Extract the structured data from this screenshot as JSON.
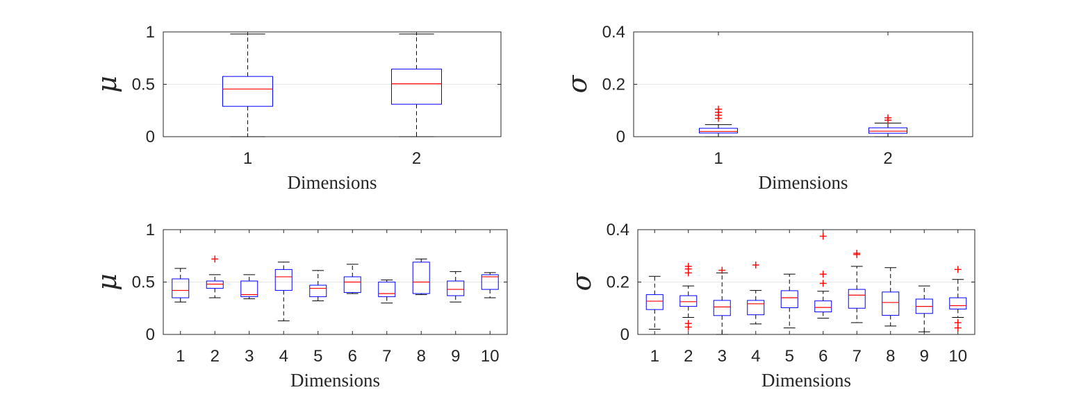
{
  "colors": {
    "box": "#0000ff",
    "median": "#ff0000",
    "whisker": "#000000",
    "outlier": "#ff0000",
    "axis": "#262626",
    "grid": "#e6e6e6"
  },
  "chart_data": [
    {
      "type": "boxplot",
      "xlabel": "Dimensions",
      "ylabel": "μ",
      "ylim": [
        0,
        1
      ],
      "yticks": [
        "0",
        "0.5",
        "1"
      ],
      "grid": "y",
      "categories": [
        "1",
        "2"
      ],
      "boxes": [
        {
          "min": 0.0,
          "q1": 0.29,
          "median": 0.455,
          "q3": 0.575,
          "max": 0.98,
          "outliers": []
        },
        {
          "min": 0.0,
          "q1": 0.31,
          "median": 0.505,
          "q3": 0.645,
          "max": 0.98,
          "outliers": []
        }
      ]
    },
    {
      "type": "boxplot",
      "xlabel": "Dimensions",
      "ylabel": "σ",
      "ylim": [
        0,
        0.4
      ],
      "yticks": [
        "0",
        "0.2",
        "0.4"
      ],
      "grid": "y",
      "categories": [
        "1",
        "2"
      ],
      "boxes": [
        {
          "min": 0.0,
          "q1": 0.014,
          "median": 0.02,
          "q3": 0.032,
          "max": 0.046,
          "outliers": [
            0.07,
            0.082,
            0.093,
            0.105
          ]
        },
        {
          "min": 0.0,
          "q1": 0.013,
          "median": 0.021,
          "q3": 0.034,
          "max": 0.052,
          "outliers": [
            0.063,
            0.072
          ]
        }
      ]
    },
    {
      "type": "boxplot",
      "xlabel": "Dimensions",
      "ylabel": "μ",
      "ylim": [
        0,
        1
      ],
      "yticks": [
        "0",
        "0.5",
        "1"
      ],
      "grid": "y",
      "categories": [
        "1",
        "2",
        "3",
        "4",
        "5",
        "6",
        "7",
        "8",
        "9",
        "10"
      ],
      "boxes": [
        {
          "min": 0.31,
          "q1": 0.35,
          "median": 0.42,
          "q3": 0.53,
          "max": 0.63,
          "outliers": []
        },
        {
          "min": 0.35,
          "q1": 0.44,
          "median": 0.48,
          "q3": 0.51,
          "max": 0.57,
          "outliers": [
            0.72
          ]
        },
        {
          "min": 0.34,
          "q1": 0.36,
          "median": 0.38,
          "q3": 0.51,
          "max": 0.57,
          "outliers": []
        },
        {
          "min": 0.13,
          "q1": 0.42,
          "median": 0.55,
          "q3": 0.62,
          "max": 0.69,
          "outliers": []
        },
        {
          "min": 0.32,
          "q1": 0.36,
          "median": 0.44,
          "q3": 0.47,
          "max": 0.61,
          "outliers": []
        },
        {
          "min": 0.39,
          "q1": 0.4,
          "median": 0.5,
          "q3": 0.55,
          "max": 0.67,
          "outliers": []
        },
        {
          "min": 0.3,
          "q1": 0.36,
          "median": 0.39,
          "q3": 0.5,
          "max": 0.52,
          "outliers": []
        },
        {
          "min": 0.38,
          "q1": 0.39,
          "median": 0.5,
          "q3": 0.69,
          "max": 0.72,
          "outliers": []
        },
        {
          "min": 0.31,
          "q1": 0.37,
          "median": 0.43,
          "q3": 0.51,
          "max": 0.6,
          "outliers": []
        },
        {
          "min": 0.35,
          "q1": 0.43,
          "median": 0.55,
          "q3": 0.57,
          "max": 0.59,
          "outliers": []
        }
      ]
    },
    {
      "type": "boxplot",
      "xlabel": "Dimensions",
      "ylabel": "σ",
      "ylim": [
        0,
        0.4
      ],
      "yticks": [
        "0",
        "0.2",
        "0.4"
      ],
      "grid": "y",
      "categories": [
        "1",
        "2",
        "3",
        "4",
        "5",
        "6",
        "7",
        "8",
        "9",
        "10"
      ],
      "boxes": [
        {
          "min": 0.02,
          "q1": 0.095,
          "median": 0.127,
          "q3": 0.152,
          "max": 0.222,
          "outliers": []
        },
        {
          "min": 0.065,
          "q1": 0.107,
          "median": 0.125,
          "q3": 0.148,
          "max": 0.185,
          "outliers": [
            0.26,
            0.25,
            0.235,
            0.042,
            0.028
          ]
        },
        {
          "min": 0.0,
          "q1": 0.072,
          "median": 0.105,
          "q3": 0.13,
          "max": 0.235,
          "outliers": [
            0.245
          ]
        },
        {
          "min": 0.04,
          "q1": 0.075,
          "median": 0.117,
          "q3": 0.13,
          "max": 0.168,
          "outliers": [
            0.265
          ]
        },
        {
          "min": 0.025,
          "q1": 0.102,
          "median": 0.14,
          "q3": 0.167,
          "max": 0.23,
          "outliers": []
        },
        {
          "min": 0.062,
          "q1": 0.086,
          "median": 0.103,
          "q3": 0.128,
          "max": 0.165,
          "outliers": [
            0.375,
            0.23,
            0.195
          ]
        },
        {
          "min": 0.045,
          "q1": 0.1,
          "median": 0.15,
          "q3": 0.172,
          "max": 0.26,
          "outliers": [
            0.31,
            0.305
          ]
        },
        {
          "min": 0.032,
          "q1": 0.073,
          "median": 0.122,
          "q3": 0.162,
          "max": 0.255,
          "outliers": []
        },
        {
          "min": 0.01,
          "q1": 0.08,
          "median": 0.107,
          "q3": 0.135,
          "max": 0.185,
          "outliers": []
        },
        {
          "min": 0.065,
          "q1": 0.097,
          "median": 0.11,
          "q3": 0.14,
          "max": 0.21,
          "outliers": [
            0.248,
            0.045,
            0.025
          ]
        }
      ]
    }
  ]
}
